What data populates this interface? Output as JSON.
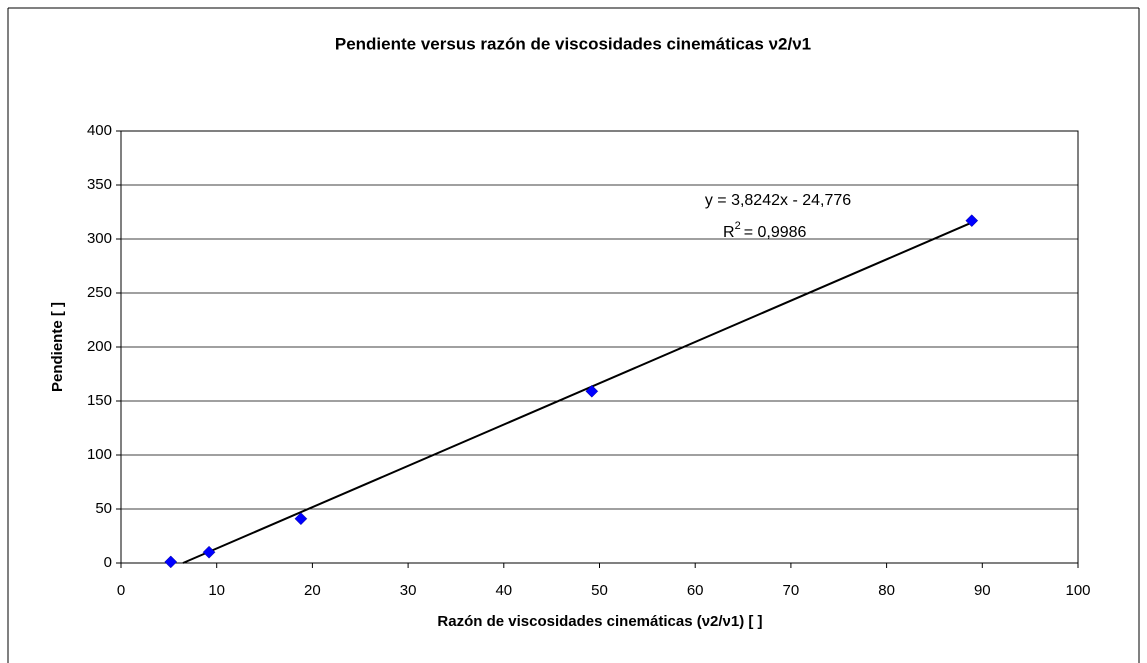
{
  "chart_data": {
    "type": "scatter",
    "title": "Pendiente versus razón de viscosidades cinemáticas ν2/ν1",
    "x_label": "Razón de viscosidades cinemáticas (ν2/ν1) [ ]",
    "y_label": "Pendiente [ ]",
    "series": [
      {
        "name": "Pendiente",
        "color": "#0000ff",
        "x": [
          5.2,
          9.2,
          18.8,
          49.2,
          88.9
        ],
        "values": [
          1,
          10,
          41,
          159,
          317
        ]
      }
    ],
    "trendline": {
      "slope": 3.8242,
      "intercept": -24.776,
      "color": "#000000",
      "equation": "y = 3,8242x - 24,776",
      "r2_base": "R",
      "r2_sup": "2",
      "r2_value": "= 0,9986"
    },
    "xlim": [
      0,
      100
    ],
    "xticks": [
      0,
      10,
      20,
      30,
      40,
      50,
      60,
      70,
      80,
      90,
      100
    ],
    "ylim": [
      0,
      400
    ],
    "yticks": [
      0,
      50,
      100,
      150,
      200,
      250,
      300,
      350,
      400
    ],
    "grid": true
  }
}
